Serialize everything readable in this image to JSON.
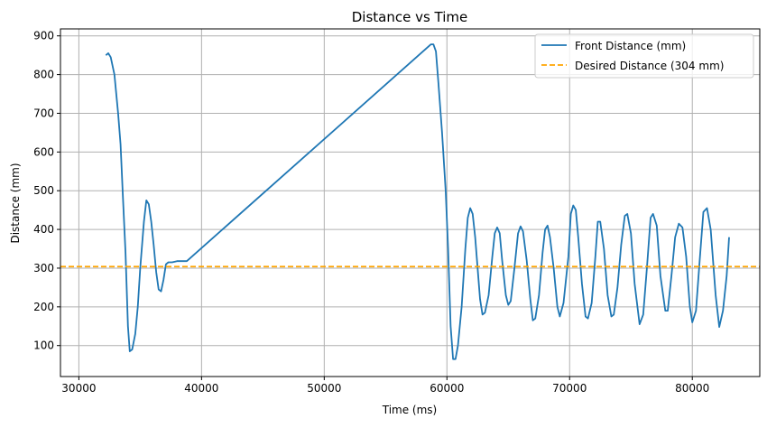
{
  "chart_data": {
    "type": "line",
    "title": "Distance vs Time",
    "xlabel": "Time (ms)",
    "ylabel": "Distance (mm)",
    "xlim": [
      28500,
      85500
    ],
    "ylim": [
      20,
      918
    ],
    "xticks": [
      30000,
      40000,
      50000,
      60000,
      70000,
      80000
    ],
    "yticks": [
      100,
      200,
      300,
      400,
      500,
      600,
      700,
      800,
      900
    ],
    "grid": true,
    "legend": "top-right",
    "series": [
      {
        "name": "Front Distance (mm)",
        "color": "#1f77b4",
        "style": "solid",
        "points": [
          [
            32200,
            850
          ],
          [
            32400,
            855
          ],
          [
            32600,
            845
          ],
          [
            32900,
            800
          ],
          [
            33200,
            700
          ],
          [
            33400,
            620
          ],
          [
            33600,
            480
          ],
          [
            33800,
            340
          ],
          [
            34000,
            150
          ],
          [
            34150,
            85
          ],
          [
            34350,
            90
          ],
          [
            34600,
            130
          ],
          [
            34800,
            200
          ],
          [
            35000,
            300
          ],
          [
            35300,
            420
          ],
          [
            35500,
            475
          ],
          [
            35700,
            465
          ],
          [
            35900,
            420
          ],
          [
            36100,
            360
          ],
          [
            36300,
            290
          ],
          [
            36500,
            245
          ],
          [
            36700,
            240
          ],
          [
            36900,
            270
          ],
          [
            37100,
            310
          ],
          [
            37300,
            315
          ],
          [
            37600,
            315
          ],
          [
            38000,
            318
          ],
          [
            38800,
            318
          ],
          [
            58700,
            878
          ],
          [
            58900,
            878
          ],
          [
            59100,
            860
          ],
          [
            59300,
            780
          ],
          [
            59600,
            650
          ],
          [
            59900,
            500
          ],
          [
            60100,
            350
          ],
          [
            60300,
            150
          ],
          [
            60500,
            65
          ],
          [
            60700,
            65
          ],
          [
            60900,
            100
          ],
          [
            61200,
            200
          ],
          [
            61500,
            350
          ],
          [
            61700,
            430
          ],
          [
            61900,
            455
          ],
          [
            62100,
            440
          ],
          [
            62300,
            380
          ],
          [
            62500,
            300
          ],
          [
            62700,
            220
          ],
          [
            62900,
            180
          ],
          [
            63100,
            185
          ],
          [
            63400,
            230
          ],
          [
            63700,
            330
          ],
          [
            63900,
            390
          ],
          [
            64100,
            405
          ],
          [
            64300,
            390
          ],
          [
            64500,
            320
          ],
          [
            64800,
            230
          ],
          [
            65000,
            205
          ],
          [
            65200,
            215
          ],
          [
            65500,
            300
          ],
          [
            65800,
            390
          ],
          [
            66000,
            408
          ],
          [
            66200,
            395
          ],
          [
            66500,
            320
          ],
          [
            66800,
            220
          ],
          [
            67000,
            165
          ],
          [
            67200,
            170
          ],
          [
            67500,
            230
          ],
          [
            67800,
            340
          ],
          [
            68000,
            400
          ],
          [
            68200,
            410
          ],
          [
            68400,
            380
          ],
          [
            68700,
            300
          ],
          [
            69000,
            200
          ],
          [
            69200,
            175
          ],
          [
            69500,
            210
          ],
          [
            69900,
            330
          ],
          [
            70100,
            440
          ],
          [
            70300,
            462
          ],
          [
            70500,
            450
          ],
          [
            70700,
            380
          ],
          [
            71000,
            260
          ],
          [
            71300,
            175
          ],
          [
            71500,
            170
          ],
          [
            71800,
            210
          ],
          [
            72100,
            330
          ],
          [
            72300,
            420
          ],
          [
            72500,
            420
          ],
          [
            72800,
            350
          ],
          [
            73100,
            230
          ],
          [
            73400,
            175
          ],
          [
            73600,
            180
          ],
          [
            73900,
            250
          ],
          [
            74200,
            360
          ],
          [
            74500,
            435
          ],
          [
            74700,
            440
          ],
          [
            75000,
            390
          ],
          [
            75300,
            260
          ],
          [
            75700,
            155
          ],
          [
            76000,
            180
          ],
          [
            76300,
            300
          ],
          [
            76600,
            430
          ],
          [
            76800,
            440
          ],
          [
            77100,
            410
          ],
          [
            77400,
            280
          ],
          [
            77800,
            190
          ],
          [
            78000,
            190
          ],
          [
            78300,
            280
          ],
          [
            78600,
            380
          ],
          [
            78900,
            415
          ],
          [
            79200,
            405
          ],
          [
            79500,
            330
          ],
          [
            79800,
            200
          ],
          [
            80000,
            160
          ],
          [
            80300,
            190
          ],
          [
            80600,
            320
          ],
          [
            80900,
            445
          ],
          [
            81200,
            455
          ],
          [
            81500,
            400
          ],
          [
            81900,
            230
          ],
          [
            82200,
            148
          ],
          [
            82500,
            190
          ],
          [
            82800,
            280
          ],
          [
            83000,
            380
          ]
        ]
      },
      {
        "name": "Desired Distance (304 mm)",
        "color": "#ffa500",
        "style": "dashed",
        "y": 304
      }
    ]
  }
}
